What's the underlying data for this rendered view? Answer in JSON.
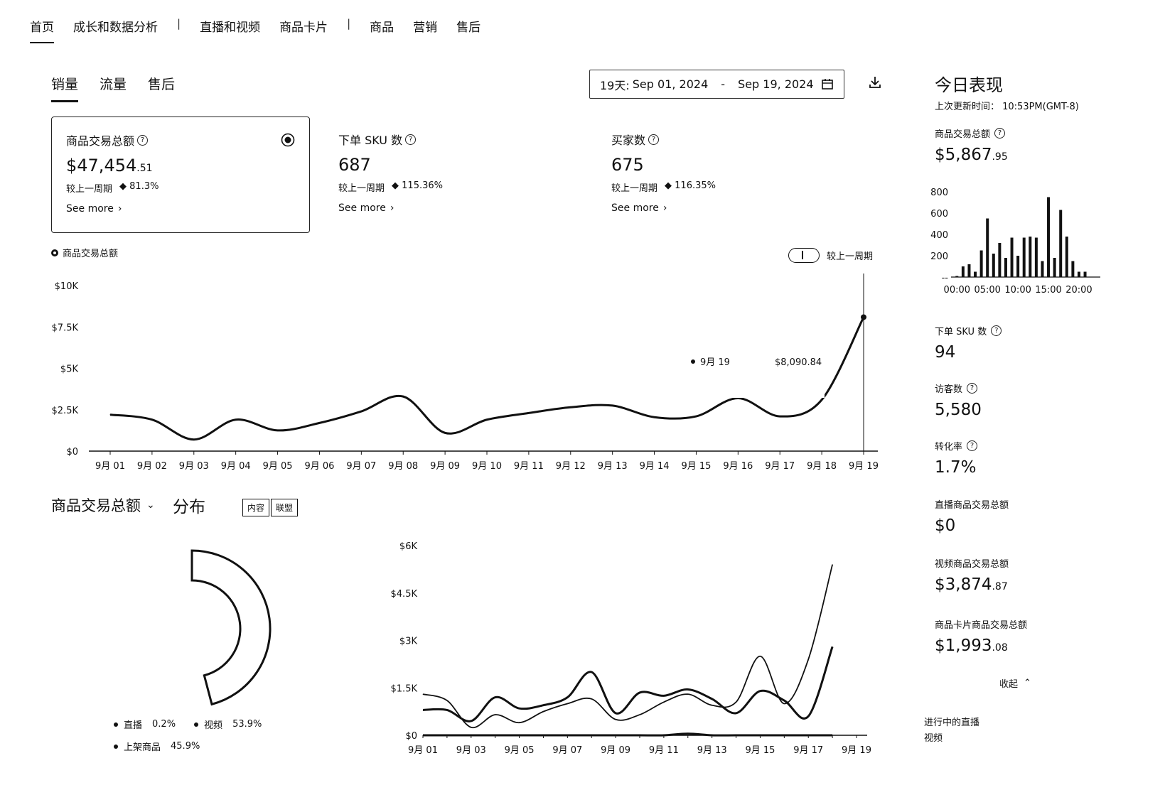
{
  "nav": {
    "items": [
      "首页",
      "成长和数据分析",
      "直播和视频",
      "商品卡片",
      "商品",
      "营销",
      "售后"
    ],
    "separator": "|"
  },
  "subtabs": [
    "销量",
    "流量",
    "售后"
  ],
  "date_range": {
    "prefix": "19天:",
    "start": "Sep 01, 2024",
    "dash": "-",
    "end": "Sep 19, 2024"
  },
  "cards": [
    {
      "title": "商品交易总额",
      "value_main": "$47,454",
      "value_cents": ".51",
      "compare_label": "较上一周期",
      "change": "81.3%",
      "see_more": "See more"
    },
    {
      "title": "下单 SKU 数",
      "value_main": "687",
      "value_cents": "",
      "compare_label": "较上一周期",
      "change": "115.36%",
      "see_more": "See more"
    },
    {
      "title": "买家数",
      "value_main": "675",
      "value_cents": "",
      "compare_label": "较上一周期",
      "change": "116.35%",
      "see_more": "See more"
    }
  ],
  "main_chart_legend": "商品交易总额",
  "compare_toggle_label": "较上一周期",
  "chart_data": [
    {
      "type": "line",
      "title": "",
      "series": [
        {
          "name": "商品交易总额",
          "values": [
            2200,
            1900,
            700,
            1900,
            1250,
            1700,
            2400,
            3300,
            1100,
            1900,
            2300,
            2650,
            2750,
            2050,
            2100,
            3200,
            2100,
            3100,
            8090.84
          ]
        }
      ],
      "x": [
        "9月 01",
        "9月 02",
        "9月 03",
        "9月 04",
        "9月 05",
        "9月 06",
        "9月 07",
        "9月 08",
        "9月 09",
        "9月 10",
        "9月 11",
        "9月 12",
        "9月 13",
        "9月 14",
        "9月 15",
        "9月 16",
        "9月 17",
        "9月 18",
        "9月 19"
      ],
      "y_ticks": [
        "$0",
        "$2.5K",
        "$5K",
        "$7.5K",
        "$10K"
      ],
      "ylim": [
        0,
        10000
      ],
      "tooltip": {
        "date": "9月 19",
        "value": "$8,090.84"
      },
      "grid": false
    },
    {
      "type": "pie",
      "title": "",
      "labels": [
        "直播",
        "视频",
        "上架商品"
      ],
      "values": [
        0.2,
        53.9,
        45.9
      ],
      "display": [
        "0.2%",
        "53.9%",
        "45.9%"
      ]
    },
    {
      "type": "line",
      "title": "",
      "x": [
        "9月 01",
        "9月 02",
        "9月 03",
        "9月 04",
        "9月 05",
        "9月 06",
        "9月 07",
        "9月 08",
        "9月 09",
        "9月 10",
        "9月 11",
        "9月 12",
        "9月 13",
        "9月 14",
        "9月 15",
        "9月 16",
        "9月 17",
        "9月 18",
        "9月 19"
      ],
      "x_tick_labels": [
        "9月 01",
        "9月 03",
        "9月 05",
        "9月 07",
        "9月 09",
        "9月 11",
        "9月 13",
        "9月 15",
        "9月 17",
        "9月 19"
      ],
      "y_ticks": [
        "$0",
        "$1.5K",
        "$3K",
        "$4.5K",
        "$6K"
      ],
      "ylim": [
        0,
        6000
      ],
      "series": [
        {
          "values": [
            800,
            800,
            450,
            1200,
            850,
            950,
            1200,
            2000,
            700,
            1350,
            1250,
            1450,
            1150,
            700,
            1400,
            1100,
            600,
            2800,
            null
          ]
        },
        {
          "values": [
            1300,
            1100,
            250,
            650,
            400,
            750,
            1000,
            1150,
            500,
            650,
            1050,
            1300,
            950,
            1050,
            2500,
            1000,
            2400,
            5400,
            null
          ]
        },
        {
          "values": [
            0,
            0,
            0,
            0,
            0,
            0,
            0,
            0,
            0,
            0,
            0,
            50,
            0,
            0,
            0,
            0,
            0,
            0,
            null
          ]
        }
      ]
    },
    {
      "type": "bar",
      "title": "",
      "categories": [
        "00:00",
        "01:00",
        "02:00",
        "03:00",
        "04:00",
        "05:00",
        "06:00",
        "07:00",
        "08:00",
        "09:00",
        "10:00",
        "11:00",
        "12:00",
        "13:00",
        "14:00",
        "15:00",
        "16:00",
        "17:00",
        "18:00",
        "19:00",
        "20:00",
        "21:00",
        "22:00",
        "23:00"
      ],
      "values": [
        10,
        100,
        120,
        50,
        250,
        550,
        220,
        320,
        180,
        370,
        200,
        370,
        380,
        370,
        150,
        750,
        180,
        630,
        380,
        150,
        50,
        50,
        0,
        0
      ],
      "x_tick_labels": [
        "00:00",
        "05:00",
        "10:00",
        "15:00",
        "20:00"
      ],
      "y_ticks": [
        "--",
        "200",
        "400",
        "600",
        "800"
      ],
      "ylim": [
        0,
        800
      ]
    }
  ],
  "distribution": {
    "title": "商品交易总额",
    "subtitle": "分布",
    "buttons": [
      "内容",
      "联盟"
    ],
    "legend": [
      {
        "label": "直播",
        "value": "0.2%"
      },
      {
        "label": "视频",
        "value": "53.9%"
      },
      {
        "label": "上架商品",
        "value": "45.9%"
      }
    ]
  },
  "today": {
    "title": "今日表现",
    "updated": "上次更新时间： 10:53PM(GMT-8)",
    "gmv": {
      "label": "商品交易总额",
      "main": "$5,867",
      "cents": ".95"
    },
    "sku": {
      "label": "下单 SKU 数",
      "value": "94"
    },
    "visitors": {
      "label": "访客数",
      "value": "5,580"
    },
    "conversion": {
      "label": "转化率",
      "value": "1.7%"
    },
    "live_gmv": {
      "label": "直播商品交易总额",
      "main": "$0",
      "cents": ""
    },
    "video_gmv": {
      "label": "视频商品交易总额",
      "main": "$3,874",
      "cents": ".87"
    },
    "card_gmv": {
      "label": "商品卡片商品交易总额",
      "main": "$1,993",
      "cents": ".08"
    },
    "collapse": "收起",
    "live_videos": "进行中的直播视频"
  }
}
